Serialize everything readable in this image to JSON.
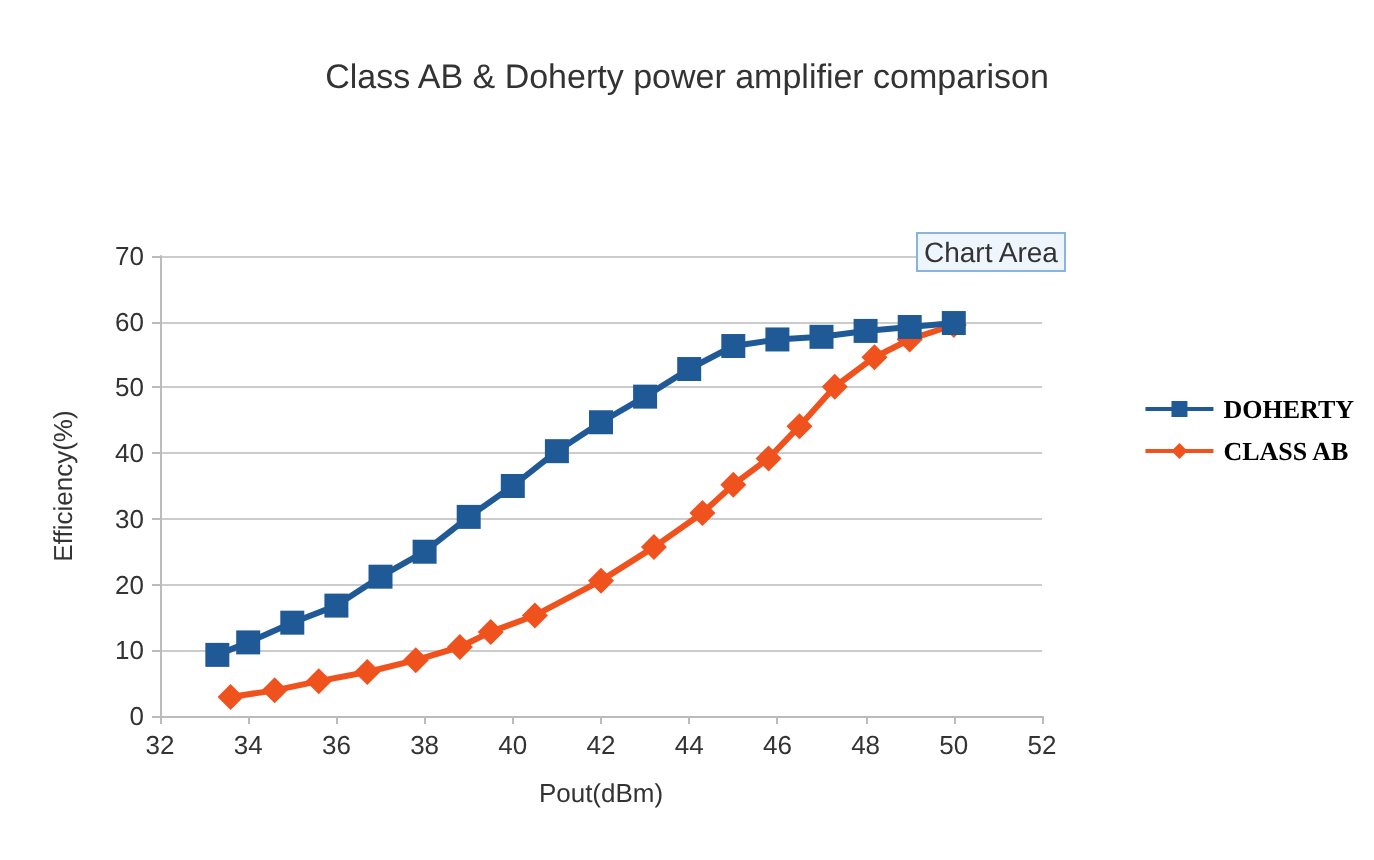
{
  "chart_data": {
    "type": "line",
    "title": "Class AB & Doherty power amplifier comparison",
    "xlabel": "Pout(dBm)",
    "ylabel": "Efficiency(%)",
    "xlim": [
      32,
      52
    ],
    "xticks": [
      32,
      34,
      36,
      38,
      40,
      42,
      44,
      46,
      48,
      50,
      52
    ],
    "ylim": [
      0,
      70
    ],
    "yticks": [
      0,
      10,
      20,
      30,
      40,
      50,
      60,
      70
    ],
    "grid": "y",
    "legend": "right",
    "annotations": [
      "Chart Area"
    ],
    "series": [
      {
        "name": "DOHERTY",
        "color": "#1f5a96",
        "marker": "square",
        "x": [
          33.3,
          34,
          35,
          36,
          37,
          38,
          39,
          40,
          41,
          42,
          43,
          44,
          45,
          46,
          47,
          48,
          49,
          50
        ],
        "values": [
          9.3,
          11.2,
          14.2,
          16.8,
          21.2,
          25,
          30.3,
          35,
          40.3,
          44.7,
          48.6,
          52.8,
          56.3,
          57.3,
          57.7,
          58.6,
          59.2,
          59.8
        ]
      },
      {
        "name": "CLASS AB",
        "color": "#f0521e",
        "marker": "diamond",
        "x": [
          33.6,
          34.6,
          35.6,
          36.7,
          37.8,
          38.8,
          39.5,
          40.5,
          42,
          43.2,
          44.3,
          45,
          45.8,
          46.5,
          47.3,
          48.2,
          49,
          50
        ],
        "values": [
          2.9,
          3.9,
          5.3,
          6.7,
          8.5,
          10.5,
          12.8,
          15.3,
          20.6,
          25.7,
          30.9,
          35.2,
          39.2,
          44.1,
          50.1,
          54.6,
          57.3,
          59.5
        ]
      }
    ]
  }
}
